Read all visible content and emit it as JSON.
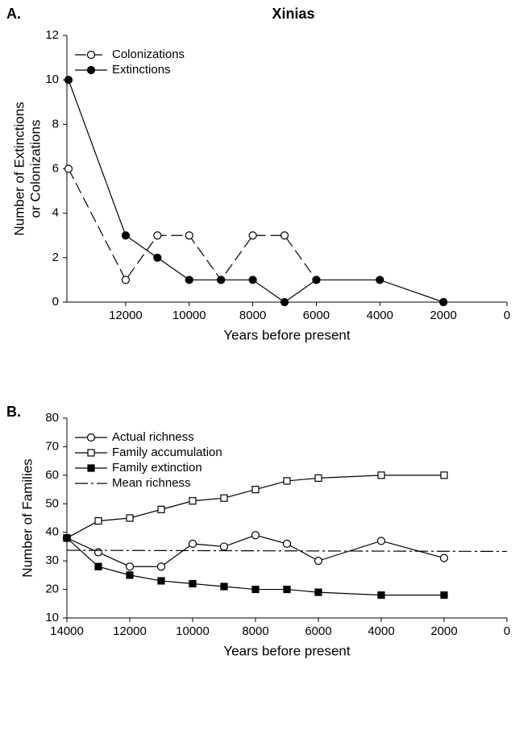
{
  "chart_data": [
    {
      "type": "line",
      "panel": "A.",
      "title": "Xinias",
      "x": [
        13800,
        12000,
        11000,
        10000,
        9000,
        8000,
        7000,
        6000,
        4000,
        2000
      ],
      "xlim": [
        13850,
        0
      ],
      "xticks": [
        12000,
        10000,
        8000,
        6000,
        4000,
        2000,
        0
      ],
      "ylim": [
        0,
        12
      ],
      "yticks": [
        0,
        2,
        4,
        6,
        8,
        10,
        12
      ],
      "xlabel": "Years before present",
      "ylabel": [
        "Number of Extinctions",
        "or Colonizations"
      ],
      "legend": "upper left",
      "series": [
        {
          "name": "Colonizations",
          "color": "#000000",
          "marker": "open-circle",
          "dash": "dashed",
          "values": [
            6,
            1,
            3,
            3,
            1,
            3,
            3,
            1,
            null,
            null
          ]
        },
        {
          "name": "Extinctions",
          "color": "#000000",
          "marker": "filled-circle",
          "dash": "solid",
          "values": [
            10,
            3,
            2,
            1,
            1,
            1,
            0,
            1,
            1,
            0
          ]
        }
      ]
    },
    {
      "type": "line",
      "panel": "B.",
      "x": [
        14000,
        13000,
        12000,
        11000,
        10000,
        9000,
        8000,
        7000,
        6000,
        4000,
        2000
      ],
      "xlim": [
        14000,
        0
      ],
      "xticks": [
        14000,
        12000,
        10000,
        8000,
        6000,
        4000,
        2000,
        0
      ],
      "ylim": [
        10,
        80
      ],
      "yticks": [
        10,
        20,
        30,
        40,
        50,
        60,
        70,
        80
      ],
      "xlabel": "Years before present",
      "ylabel": [
        "Number of Families"
      ],
      "legend": "upper left",
      "series": [
        {
          "name": "Actual richness",
          "color": "#000000",
          "marker": "open-circle",
          "dash": "solid",
          "values": [
            38,
            33,
            28,
            28,
            36,
            35,
            39,
            36,
            30,
            37,
            31
          ]
        },
        {
          "name": "Family accumulation",
          "color": "#000000",
          "marker": "open-square",
          "dash": "solid",
          "values": [
            38,
            44,
            45,
            48,
            51,
            52,
            55,
            58,
            59,
            60,
            60
          ]
        },
        {
          "name": "Family extinction",
          "color": "#000000",
          "marker": "filled-square",
          "dash": "solid",
          "values": [
            38,
            28,
            25,
            23,
            22,
            21,
            20,
            20,
            19,
            18,
            18
          ]
        },
        {
          "name": "Mean richness",
          "color": "#000000",
          "marker": "none",
          "dash": "dashdot",
          "x": [
            14000,
            0
          ],
          "values": [
            33.7,
            33.3
          ]
        }
      ]
    }
  ]
}
